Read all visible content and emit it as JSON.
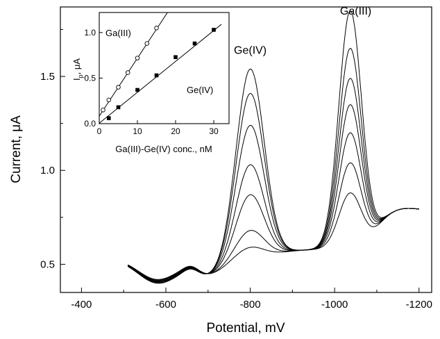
{
  "chart_data": [
    {
      "type": "line",
      "xlabel": "Potential, mV",
      "ylabel": "Current, μA",
      "xlim": [
        -350,
        -1230
      ],
      "ylim": [
        0.35,
        1.87
      ],
      "x_ticks": [
        -400,
        -600,
        -800,
        -1000,
        -1200
      ],
      "x_tick_labels": [
        "-400",
        "-600",
        "-800",
        "-1000",
        "-1200"
      ],
      "y_ticks": [
        0.5,
        1.0,
        1.5
      ],
      "y_tick_labels": [
        "0.5",
        "1.0",
        "1.5"
      ],
      "grid": false,
      "annotations": [
        {
          "text": "Ge(IV)",
          "x": -800,
          "y": 1.62
        },
        {
          "text": "Ga(III)",
          "x": -1050,
          "y": 1.83
        }
      ],
      "series": [
        {
          "ge_peak": 0.59,
          "ga_peak": 0.88
        },
        {
          "ge_peak": 0.68,
          "ga_peak": 1.04
        },
        {
          "ge_peak": 0.87,
          "ga_peak": 1.2
        },
        {
          "ge_peak": 1.03,
          "ga_peak": 1.35
        },
        {
          "ge_peak": 1.24,
          "ga_peak": 1.49
        },
        {
          "ge_peak": 1.41,
          "ga_peak": 1.65
        },
        {
          "ge_peak": 1.54,
          "ga_peak": 1.85
        }
      ]
    },
    {
      "type": "scatter",
      "xlabel": "Ga(III)-Ge(IV) conc., nM",
      "ylabel": "I",
      "ylabel_sub": "p",
      "ylabel_suffix": ", μA",
      "xlim": [
        0,
        34
      ],
      "ylim": [
        0,
        1.22
      ],
      "x_ticks": [
        0,
        10,
        20,
        30
      ],
      "x_tick_labels": [
        "0",
        "10",
        "20",
        "30"
      ],
      "y_ticks": [
        0.0,
        0.5,
        1.0
      ],
      "y_tick_labels": [
        "0.0",
        "0.5",
        "1.0"
      ],
      "series": [
        {
          "name": "Ga(III)",
          "marker": "open-circle",
          "x": [
            1,
            2.5,
            5,
            7.5,
            10,
            12.5,
            15
          ],
          "y": [
            0.15,
            0.26,
            0.4,
            0.56,
            0.72,
            0.88,
            1.05
          ],
          "fit": {
            "x": [
              0,
              18.5
            ],
            "y": [
              0.082,
              1.26
            ]
          }
        },
        {
          "name": "Ge(IV)",
          "marker": "filled-square",
          "x": [
            2.5,
            5,
            10,
            15,
            20,
            25,
            30
          ],
          "y": [
            0.06,
            0.18,
            0.37,
            0.53,
            0.73,
            0.88,
            1.03
          ],
          "fit": {
            "x": [
              0,
              32
            ],
            "y": [
              0.005,
              1.09
            ]
          }
        }
      ]
    }
  ]
}
